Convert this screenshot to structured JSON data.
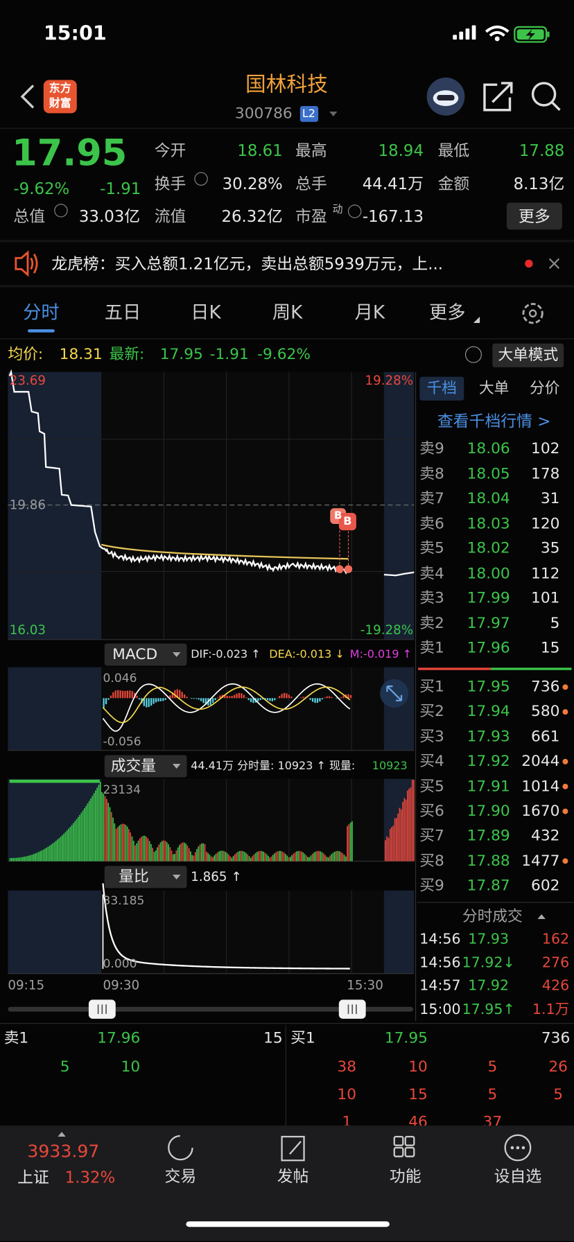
{
  "status_bar": {
    "time": "15:01"
  },
  "header": {
    "logo": [
      "东方",
      "财富"
    ],
    "title": "国林科技",
    "code": "300786",
    "badge": "L2"
  },
  "quote": {
    "price": "17.95",
    "change_pct": "-9.62%",
    "change": "-1.91",
    "total_value": {
      "label": "总值",
      "value": "33.03亿"
    },
    "stats": [
      {
        "label": "今开",
        "value": "18.61"
      },
      {
        "label": "最高",
        "value": "18.94"
      },
      {
        "label": "最低",
        "value": "17.88"
      },
      {
        "label": "换手",
        "value": "30.28%"
      },
      {
        "label": "总手",
        "value": "44.41万"
      },
      {
        "label": "金额",
        "value": "8.13亿"
      },
      {
        "label": "流值",
        "value": "26.32亿"
      },
      {
        "label": "市盈",
        "sup": "动",
        "value": "-167.13"
      }
    ],
    "more": "更多"
  },
  "notice": {
    "text": "龙虎榜：买入总额1.21亿元，卖出总额5939万元，上..."
  },
  "tabs": [
    "分时",
    "五日",
    "日K",
    "周K",
    "月K",
    "更多"
  ],
  "info_bar": {
    "avg_label": "均价:",
    "avg": "18.31",
    "latest_label": "最新:",
    "latest": "17.95",
    "change": "-1.91",
    "change_pct": "-9.62%",
    "mode": "大单模式"
  },
  "price_chart": {
    "high": "23.69",
    "prev_close": "19.86",
    "low": "16.03",
    "high_pct": "19.28%",
    "low_pct": "-19.28%",
    "marker": "B"
  },
  "macd": {
    "name": "MACD",
    "dif": "DIF:-0.023 ↑",
    "dea": "DEA:-0.013 ↓",
    "m": "M:-0.019 ↑",
    "max": "0.046",
    "min": "-0.056"
  },
  "volume": {
    "name": "成交量",
    "summary": "44.41万 分时量: 10923 ↑ 现量:",
    "current": "10923",
    "max": "23134"
  },
  "ratio": {
    "name": "量比",
    "value": "1.865 ↑",
    "max": "33.185",
    "min": "0.000"
  },
  "time_axis": [
    "09:15",
    "09:30",
    "15:30"
  ],
  "order_panel": {
    "tabs": [
      "千档",
      "大单",
      "分价"
    ],
    "link": "查看千档行情 >",
    "sell": [
      {
        "label": "卖9",
        "price": "18.06",
        "volume": "102"
      },
      {
        "label": "卖8",
        "price": "18.05",
        "volume": "178"
      },
      {
        "label": "卖7",
        "price": "18.04",
        "volume": "31"
      },
      {
        "label": "卖6",
        "price": "18.03",
        "volume": "120"
      },
      {
        "label": "卖5",
        "price": "18.02",
        "volume": "35"
      },
      {
        "label": "卖4",
        "price": "18.00",
        "volume": "112"
      },
      {
        "label": "卖3",
        "price": "17.99",
        "volume": "101"
      },
      {
        "label": "卖2",
        "price": "17.97",
        "volume": "5"
      },
      {
        "label": "卖1",
        "price": "17.96",
        "volume": "15"
      }
    ],
    "buy": [
      {
        "label": "买1",
        "price": "17.95",
        "volume": "736"
      },
      {
        "label": "买2",
        "price": "17.94",
        "volume": "580"
      },
      {
        "label": "买3",
        "price": "17.93",
        "volume": "661"
      },
      {
        "label": "买4",
        "price": "17.92",
        "volume": "2044"
      },
      {
        "label": "买5",
        "price": "17.91",
        "volume": "1014"
      },
      {
        "label": "买6",
        "price": "17.90",
        "volume": "1670"
      },
      {
        "label": "买7",
        "price": "17.89",
        "volume": "432"
      },
      {
        "label": "买8",
        "price": "17.88",
        "volume": "1477"
      },
      {
        "label": "买9",
        "price": "17.87",
        "volume": "602"
      }
    ],
    "trades_title": "分时成交",
    "trades": [
      {
        "time": "14:56",
        "price": "17.93",
        "volume": "162"
      },
      {
        "time": "14:56",
        "price": "17.92↓",
        "volume": "276"
      },
      {
        "time": "14:57",
        "price": "17.92",
        "volume": "426"
      },
      {
        "time": "15:00",
        "price": "17.95↑",
        "volume": "1.1万"
      }
    ]
  },
  "book": {
    "sell": {
      "label": "卖1",
      "price": "17.96",
      "volume": "15"
    },
    "buy": {
      "label": "买1",
      "price": "17.95",
      "volume": "736"
    },
    "sell_rows": [
      [
        "5",
        "10"
      ]
    ],
    "buy_rows": [
      [
        "38",
        "10",
        "5",
        "26"
      ],
      [
        "10",
        "15",
        "5",
        "5"
      ],
      [
        "1",
        "46",
        "37"
      ]
    ]
  },
  "nav": {
    "index": {
      "value": "3933.97",
      "name": "上证",
      "change": "1.32%"
    },
    "items": [
      "交易",
      "发帖",
      "功能",
      "设自选"
    ]
  }
}
